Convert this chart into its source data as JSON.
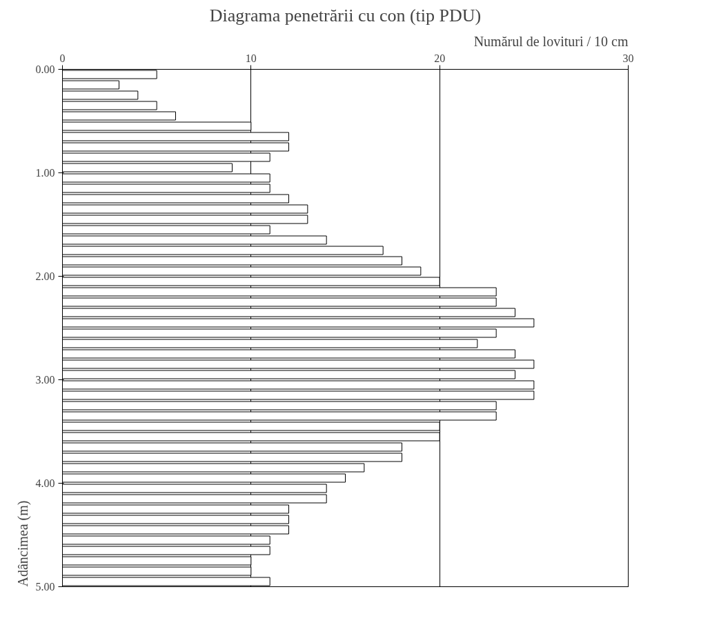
{
  "chart_data": {
    "type": "bar",
    "orientation": "horizontal",
    "title": "Diagrama penetrării cu con (tip PDU)",
    "xlabel": "Numărul de lovituri / 10 cm",
    "ylabel": "Adâncimea (m)",
    "x": [
      0.05,
      0.15,
      0.25,
      0.35,
      0.45,
      0.55,
      0.65,
      0.75,
      0.85,
      0.95,
      1.05,
      1.15,
      1.25,
      1.35,
      1.45,
      1.55,
      1.65,
      1.75,
      1.85,
      1.95,
      2.05,
      2.15,
      2.25,
      2.35,
      2.45,
      2.55,
      2.65,
      2.75,
      2.85,
      2.95,
      3.05,
      3.15,
      3.25,
      3.35,
      3.45,
      3.55,
      3.65,
      3.75,
      3.85,
      3.95,
      4.05,
      4.15,
      4.25,
      4.35,
      4.45,
      4.55,
      4.65,
      4.75,
      4.85,
      4.95
    ],
    "values": [
      5,
      3,
      4,
      5,
      6,
      10,
      12,
      12,
      11,
      9,
      11,
      11,
      12,
      13,
      13,
      11,
      14,
      17,
      18,
      19,
      20,
      23,
      23,
      24,
      25,
      23,
      22,
      24,
      25,
      24,
      25,
      25,
      23,
      23,
      20,
      20,
      18,
      18,
      16,
      15,
      14,
      14,
      12,
      12,
      12,
      11,
      11,
      10,
      10,
      11
    ],
    "color": "#ffffff",
    "xlim": [
      0,
      30
    ],
    "xticks": [
      0,
      10,
      20,
      30
    ],
    "ylim": [
      5,
      0
    ],
    "yticks": [
      {
        "value": 0,
        "label": "0.00"
      },
      {
        "value": 1,
        "label": "1.00"
      },
      {
        "value": 2,
        "label": "2.00"
      },
      {
        "value": 3,
        "label": "3.00"
      },
      {
        "value": 4,
        "label": "4.00"
      },
      {
        "value": 5,
        "label": "5.00"
      }
    ],
    "grid": "x"
  }
}
